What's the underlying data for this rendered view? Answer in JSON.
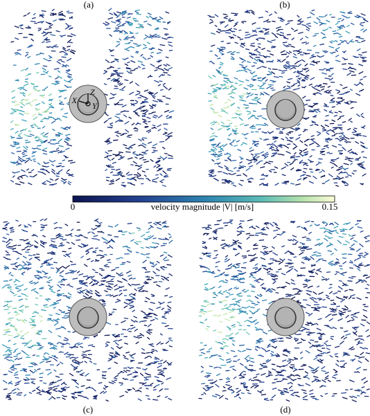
{
  "panels": [
    {
      "label": "(a)"
    },
    {
      "label": "(b)"
    },
    {
      "label": "(c)"
    },
    {
      "label": "(d)"
    }
  ],
  "axes_triad": {
    "x": "X",
    "y": "Y",
    "z": "Z"
  },
  "colorbar": {
    "label": "velocity magnitude |V| [m/s]",
    "min": 0,
    "max": 0.15
  }
}
